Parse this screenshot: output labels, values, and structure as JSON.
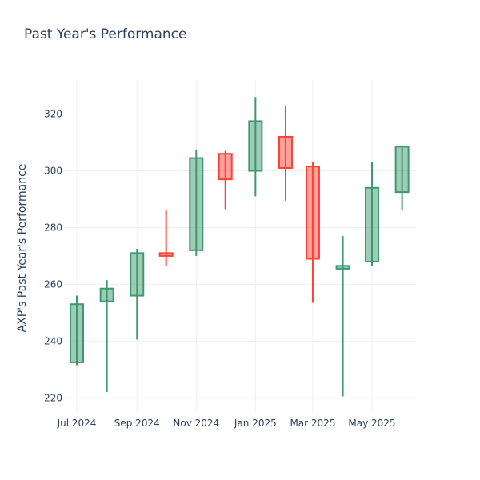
{
  "chart_data": {
    "type": "candlestick",
    "title": "Past Year's Performance",
    "xlabel": "",
    "ylabel": "AXP's Past Year's Performance",
    "ylim": [
      215,
      332
    ],
    "x_tick_labels": [
      "Jul 2024",
      "Sep 2024",
      "Nov 2024",
      "Jan 2025",
      "Mar 2025",
      "May 2025"
    ],
    "y_ticks": [
      220,
      240,
      260,
      280,
      300,
      320
    ],
    "grid": true,
    "legend": "none",
    "colors": {
      "increasing": "#3d9970",
      "decreasing": "#ff4136"
    },
    "candles": [
      {
        "date": "2024-07-01",
        "open": 232.5,
        "high": 256.0,
        "low": 231.5,
        "close": 253.0
      },
      {
        "date": "2024-08-01",
        "open": 254.0,
        "high": 261.5,
        "low": 222.0,
        "close": 258.5
      },
      {
        "date": "2024-09-01",
        "open": 256.0,
        "high": 272.5,
        "low": 240.5,
        "close": 271.0
      },
      {
        "date": "2024-10-01",
        "open": 271.0,
        "high": 286.0,
        "low": 266.5,
        "close": 270.0
      },
      {
        "date": "2024-11-01",
        "open": 272.0,
        "high": 307.5,
        "low": 270.0,
        "close": 304.5
      },
      {
        "date": "2024-12-01",
        "open": 306.0,
        "high": 307.0,
        "low": 286.5,
        "close": 297.0
      },
      {
        "date": "2025-01-01",
        "open": 300.0,
        "high": 326.0,
        "low": 291.0,
        "close": 317.5
      },
      {
        "date": "2025-02-01",
        "open": 312.0,
        "high": 323.0,
        "low": 289.5,
        "close": 301.0
      },
      {
        "date": "2025-03-01",
        "open": 301.5,
        "high": 303.0,
        "low": 253.5,
        "close": 269.0
      },
      {
        "date": "2025-04-01",
        "open": 265.5,
        "high": 277.0,
        "low": 220.5,
        "close": 266.5
      },
      {
        "date": "2025-05-01",
        "open": 268.0,
        "high": 303.0,
        "low": 266.5,
        "close": 294.0
      },
      {
        "date": "2025-06-01",
        "open": 292.5,
        "high": 309.0,
        "low": 286.0,
        "close": 308.5
      }
    ]
  }
}
